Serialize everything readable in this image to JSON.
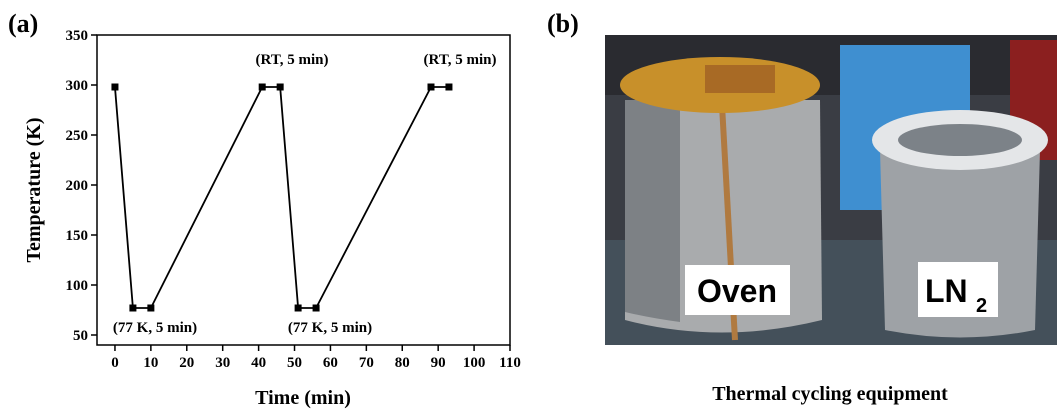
{
  "chart_data": {
    "type": "line",
    "panel_label": "(a)",
    "x_label": "Time (min)",
    "y_label": "Temperature (K)",
    "x": [
      0,
      5,
      10,
      41,
      46,
      51,
      56,
      88,
      93
    ],
    "series": [
      {
        "color": "#000000",
        "values": [
          298,
          77,
          77,
          298,
          298,
          77,
          77,
          298,
          298
        ]
      }
    ],
    "xlim": [
      -5,
      110
    ],
    "xticks": [
      0,
      10,
      20,
      30,
      40,
      50,
      60,
      70,
      80,
      90,
      100,
      110
    ],
    "ylim": [
      40,
      350
    ],
    "yticks": [
      50,
      100,
      150,
      200,
      250,
      300,
      350
    ],
    "annotations": [
      "(RT, 5 min)",
      "(RT, 5 min)",
      "(77 K, 5 min)",
      "(77 K, 5 min)"
    ]
  },
  "photo": {
    "panel_label": "(b)",
    "oven_label": "Oven",
    "ln2_label": "LN",
    "ln2_subscript": "2",
    "caption": "Thermal cycling equipment"
  }
}
